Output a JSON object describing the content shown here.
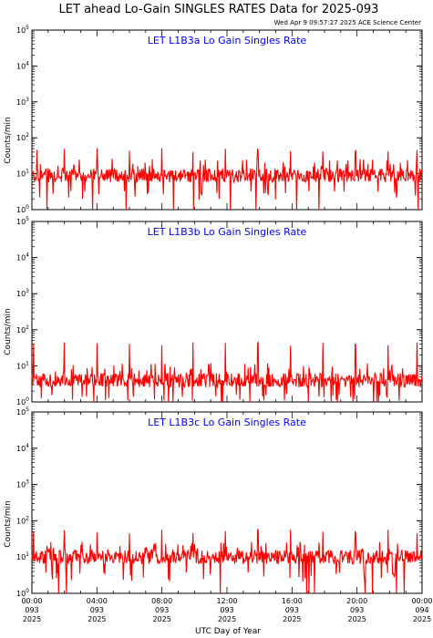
{
  "title": "LET ahead Lo-Gain SINGLES RATES Data for 2025-093",
  "timestamp": "Wed Apr  9 09:57:27 2025 ACE Science Center",
  "xlabel": "UTC Day of Year",
  "ylabel": "Counts/min",
  "colors": {
    "series": "#ff0000",
    "panel_title": "#0000ff",
    "axes": "#000000"
  },
  "x_ticks": [
    {
      "time": "00:00",
      "doy": "093",
      "year": "2025"
    },
    {
      "time": "04:00",
      "doy": "093",
      "year": "2025"
    },
    {
      "time": "08:00",
      "doy": "093",
      "year": "2025"
    },
    {
      "time": "12:00",
      "doy": "093",
      "year": "2025"
    },
    {
      "time": "16:00",
      "doy": "093",
      "year": "2025"
    },
    {
      "time": "20:00",
      "doy": "093",
      "year": "2025"
    },
    {
      "time": "00:00",
      "doy": "094",
      "year": "2025"
    }
  ],
  "chart_data": [
    {
      "type": "line",
      "title": "LET L1B3a Lo Gain Singles Rate",
      "ylabel": "Counts/min",
      "yscale": "log",
      "ylim": [
        1,
        100000
      ],
      "xlim": [
        "2025-093 00:00",
        "2025-094 00:00"
      ],
      "y_ticks": [
        {
          "value": 1,
          "base": "10",
          "exp": "0"
        },
        {
          "value": 10,
          "base": "10",
          "exp": "1"
        },
        {
          "value": 100,
          "base": "10",
          "exp": "2"
        },
        {
          "value": 1000,
          "base": "10",
          "exp": "3"
        },
        {
          "value": 10000,
          "base": "10",
          "exp": "4"
        },
        {
          "value": 100000,
          "base": "10",
          "exp": "5"
        }
      ],
      "series": [
        {
          "baseline": 9,
          "noise_low": 3,
          "noise_high": 22,
          "spike_value": 45,
          "spike_hours": [
            0.3,
            2.0,
            4.0,
            6.0,
            8.0,
            9.9,
            11.9,
            13.9,
            15.9,
            17.9,
            19.9,
            21.9,
            23.7
          ]
        }
      ]
    },
    {
      "type": "line",
      "title": "LET L1B3b Lo Gain Singles Rate",
      "ylabel": "Counts/min",
      "yscale": "log",
      "ylim": [
        1,
        100000
      ],
      "xlim": [
        "2025-093 00:00",
        "2025-094 00:00"
      ],
      "y_ticks": [
        {
          "value": 1,
          "base": "10",
          "exp": "0"
        },
        {
          "value": 10,
          "base": "10",
          "exp": "1"
        },
        {
          "value": 100,
          "base": "10",
          "exp": "2"
        },
        {
          "value": 1000,
          "base": "10",
          "exp": "3"
        },
        {
          "value": 10000,
          "base": "10",
          "exp": "4"
        },
        {
          "value": 100000,
          "base": "10",
          "exp": "5"
        }
      ],
      "series": [
        {
          "baseline": 4,
          "noise_low": 1.5,
          "noise_high": 10,
          "spike_value": 40,
          "spike_hours": [
            0.1,
            2.0,
            4.0,
            6.0,
            8.0,
            9.9,
            11.9,
            13.9,
            15.9,
            17.9,
            19.9,
            21.9,
            23.7
          ]
        }
      ]
    },
    {
      "type": "line",
      "title": "LET L1B3c Lo Gain Singles Rate",
      "ylabel": "Counts/min",
      "yscale": "log",
      "ylim": [
        1,
        100000
      ],
      "xlim": [
        "2025-093 00:00",
        "2025-094 00:00"
      ],
      "y_ticks": [
        {
          "value": 1,
          "base": "10",
          "exp": "0"
        },
        {
          "value": 10,
          "base": "10",
          "exp": "1"
        },
        {
          "value": 100,
          "base": "10",
          "exp": "2"
        },
        {
          "value": 1000,
          "base": "10",
          "exp": "3"
        },
        {
          "value": 10000,
          "base": "10",
          "exp": "4"
        },
        {
          "value": 100000,
          "base": "10",
          "exp": "5"
        }
      ],
      "series": [
        {
          "baseline": 10,
          "noise_low": 3.5,
          "noise_high": 22,
          "spike_value": 50,
          "spike_hours": [
            0.1,
            2.0,
            4.0,
            6.0,
            8.0,
            9.9,
            11.9,
            13.9,
            15.9,
            17.9,
            19.9,
            21.9,
            23.7
          ]
        }
      ]
    }
  ]
}
